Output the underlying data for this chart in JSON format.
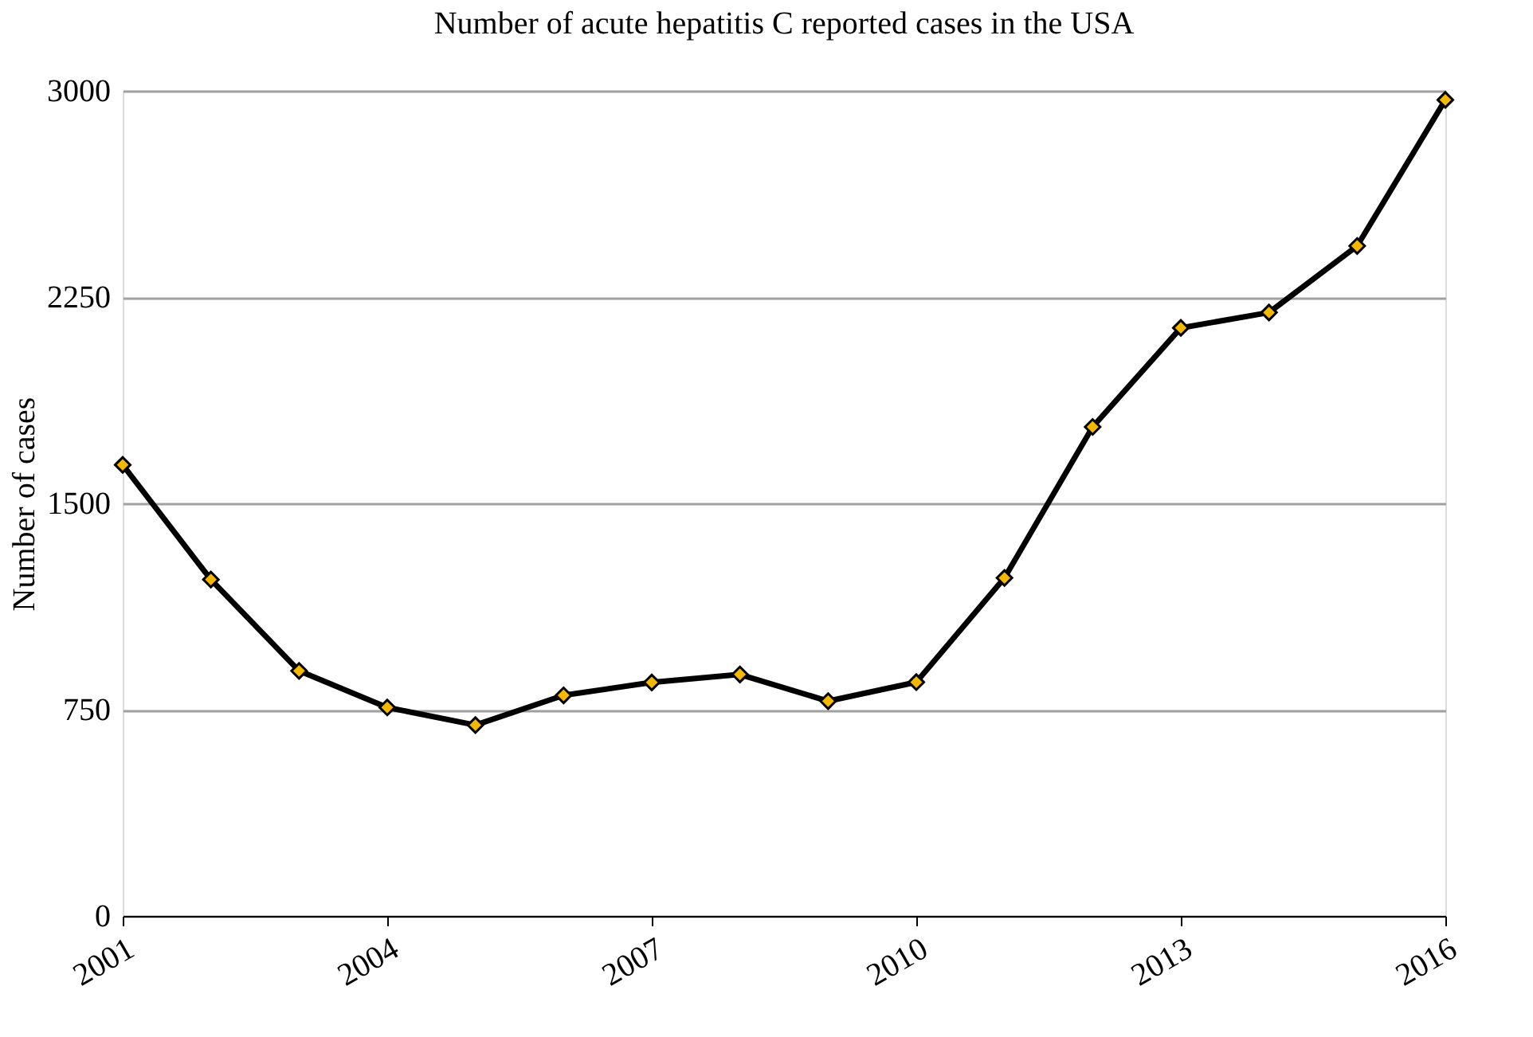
{
  "chart_data": {
    "type": "line",
    "title": "Number of acute hepatitis C reported cases in the USA",
    "ylabel": "Number of cases",
    "x": [
      2001,
      2002,
      2003,
      2004,
      2005,
      2006,
      2007,
      2008,
      2009,
      2010,
      2011,
      2012,
      2013,
      2014,
      2015,
      2016
    ],
    "series": [
      {
        "color": "#000000",
        "values": [
          1640,
          1223,
          891,
          758,
          694,
          802,
          849,
          878,
          781,
          850,
          1229,
          1778,
          2138,
          2194,
          2436,
          2967
        ]
      }
    ],
    "xlim": [
      2001,
      2016
    ],
    "xticks": [
      2001,
      2004,
      2007,
      2010,
      2013,
      2016
    ],
    "ylim": [
      0,
      3000
    ],
    "yticks": [
      0,
      750,
      1500,
      2250,
      3000
    ],
    "grid": "y",
    "marker": "diamond",
    "line_style": "solid"
  }
}
